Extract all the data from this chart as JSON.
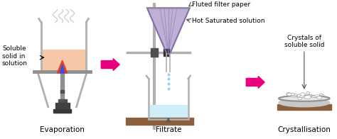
{
  "bg_color": "#ffffff",
  "arrow_color": "#e8007f",
  "label_color": "#000000",
  "light_gray": "#b0b0b0",
  "med_gray": "#909090",
  "dark_gray": "#505050",
  "beige": "#f5c8a8",
  "light_blue": "#d0eef8",
  "purple_light": "#c0b0d8",
  "purple_dark": "#8070a8",
  "flame_red": "#e83020",
  "flame_blue": "#3050e8",
  "font_size_label": 6.5,
  "font_size_title": 7.5,
  "evaporation_label": "Evaporation",
  "filtrate_label": "Filtrate",
  "crystallisation_label": "Crystallisation",
  "soluble_label": "Soluble\nsolid in\nsolution",
  "fluted_label": "Fluted filter paper",
  "hot_saturated_label": "Hot Saturated solution",
  "crystals_label": "Crystals of\nsoluble solid"
}
